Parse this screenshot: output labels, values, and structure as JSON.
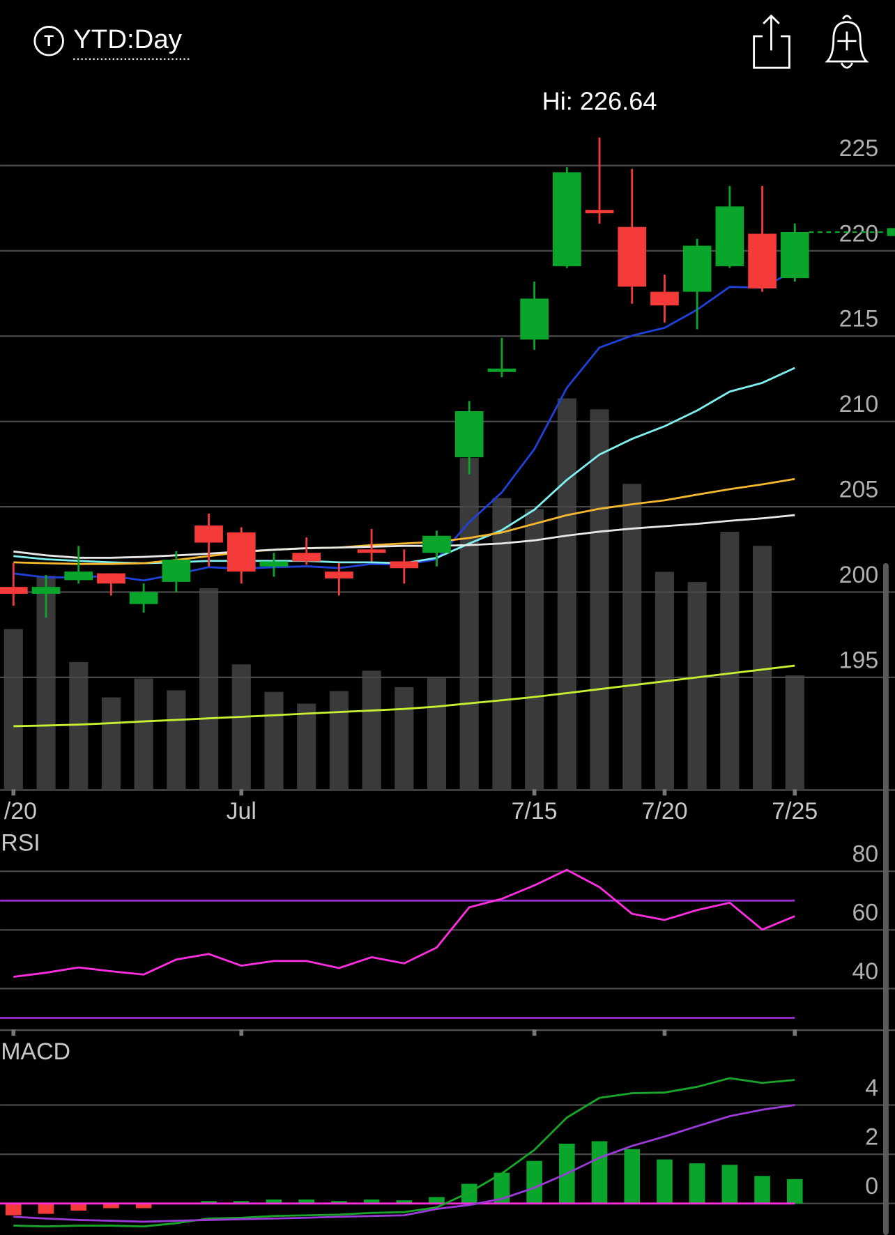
{
  "header": {
    "symbol_icon": "T",
    "title": "YTD:Day"
  },
  "chart_data": [
    {
      "type": "candlestick",
      "annotation": "Hi: 226.64",
      "categories": [
        "/20",
        null,
        null,
        null,
        null,
        null,
        null,
        "Jul",
        null,
        null,
        null,
        null,
        null,
        null,
        null,
        null,
        "7/15",
        null,
        null,
        null,
        "7/20",
        null,
        null,
        null,
        "7/25"
      ],
      "open": [
        200.3,
        199.9,
        200.7,
        201.1,
        199.3,
        200.6,
        203.9,
        203.5,
        201.5,
        202.3,
        201.2,
        202.5,
        201.8,
        202.3,
        207.9,
        212.9,
        214.8,
        219.1,
        222.4,
        221.4,
        217.6,
        217.6,
        219.1,
        221.0,
        218.4
      ],
      "high": [
        201.7,
        201.0,
        202.7,
        201.1,
        200.5,
        202.4,
        204.6,
        203.8,
        202.3,
        203.2,
        201.7,
        203.7,
        202.5,
        203.6,
        211.2,
        214.9,
        218.2,
        224.9,
        226.64,
        224.8,
        218.6,
        220.7,
        223.8,
        223.8,
        221.6
      ],
      "low": [
        199.2,
        198.5,
        200.5,
        199.8,
        198.8,
        200.0,
        201.5,
        200.5,
        200.9,
        201.6,
        199.8,
        201.8,
        200.5,
        201.5,
        206.9,
        212.6,
        214.2,
        219.0,
        221.6,
        216.9,
        215.8,
        215.4,
        219.0,
        217.6,
        218.2
      ],
      "close": [
        199.9,
        200.3,
        201.2,
        200.5,
        200.0,
        201.9,
        202.9,
        201.2,
        201.8,
        201.8,
        200.8,
        202.3,
        201.4,
        203.3,
        210.6,
        213.1,
        217.2,
        224.6,
        222.2,
        217.9,
        216.8,
        220.3,
        222.6,
        217.8,
        221.1
      ],
      "volume": [
        20.5,
        27.3,
        16.3,
        11.8,
        14.2,
        12.7,
        25.7,
        16.0,
        12.5,
        11.0,
        12.6,
        15.2,
        13.1,
        14.3,
        42.3,
        37.2,
        35.8,
        49.9,
        48.5,
        39.0,
        27.8,
        26.5,
        32.9,
        31.1,
        14.6
      ],
      "volume_ylim": [
        0,
        85
      ],
      "volume_color": "#3a3a3a",
      "up_color": "#0aa62b",
      "down_color": "#f53a3a",
      "last_price_line": true,
      "series": [
        {
          "color": "#2140d8",
          "values": [
            201.09,
            200.86,
            200.86,
            200.95,
            200.68,
            201.05,
            201.46,
            201.37,
            201.46,
            201.51,
            201.41,
            201.65,
            201.6,
            201.92,
            204.09,
            205.84,
            208.38,
            211.98,
            214.33,
            215.03,
            215.49,
            216.55,
            217.89,
            217.84,
            218.86
          ]
        },
        {
          "color": "#80f0f0",
          "values": [
            202.11,
            201.92,
            201.83,
            201.74,
            201.69,
            201.74,
            201.83,
            201.83,
            201.83,
            201.83,
            201.74,
            201.74,
            201.69,
            202.01,
            202.85,
            203.63,
            204.83,
            206.58,
            208.06,
            208.98,
            209.72,
            210.64,
            211.75,
            212.26,
            213.14
          ]
        },
        {
          "color": "#f5b82e",
          "values": [
            201.74,
            201.69,
            201.65,
            201.65,
            201.69,
            201.88,
            202.11,
            202.34,
            202.48,
            202.57,
            202.61,
            202.75,
            202.85,
            202.94,
            203.17,
            203.49,
            204.0,
            204.51,
            204.88,
            205.15,
            205.38,
            205.71,
            206.03,
            206.31,
            206.63
          ]
        },
        {
          "color": "#e8e8e8",
          "values": [
            202.38,
            202.15,
            202.01,
            202.01,
            202.06,
            202.15,
            202.25,
            202.38,
            202.48,
            202.57,
            202.61,
            202.66,
            202.71,
            202.71,
            202.75,
            202.85,
            203.03,
            203.31,
            203.54,
            203.72,
            203.86,
            204.0,
            204.18,
            204.32,
            204.51
          ]
        },
        {
          "color": "#c8f030",
          "values": [
            192.14,
            192.18,
            192.23,
            192.32,
            192.42,
            192.51,
            192.6,
            192.69,
            192.78,
            192.88,
            192.97,
            193.06,
            193.15,
            193.29,
            193.48,
            193.66,
            193.85,
            194.08,
            194.31,
            194.54,
            194.77,
            195.0,
            195.23,
            195.46,
            195.69
          ]
        }
      ],
      "ylim": [
        188.4,
        227.5
      ],
      "yticks": [
        195,
        200,
        205,
        210,
        215,
        220,
        225
      ],
      "grid": true
    },
    {
      "type": "line",
      "title": "RSI",
      "series": [
        {
          "color": "#ff2ee0",
          "values": [
            44.0,
            45.4,
            47.2,
            45.9,
            44.8,
            49.9,
            51.8,
            47.8,
            49.4,
            49.4,
            47.0,
            50.7,
            48.6,
            54.0,
            67.7,
            70.6,
            75.2,
            80.5,
            74.6,
            65.5,
            63.4,
            66.8,
            69.3,
            60.1,
            64.7
          ]
        }
      ],
      "reference_lines": [
        {
          "value": 70,
          "color": "#9a2fd0"
        },
        {
          "value": 30,
          "color": "#9a2fd0"
        }
      ],
      "ylim": [
        25.8,
        90
      ],
      "yticks": [
        40,
        60,
        80
      ],
      "grid": true
    },
    {
      "type": "macd",
      "title": "MACD",
      "series": [
        {
          "color": "#18a52a",
          "values": [
            -0.9,
            -0.93,
            -0.9,
            -0.9,
            -0.93,
            -0.8,
            -0.61,
            -0.58,
            -0.51,
            -0.48,
            -0.45,
            -0.38,
            -0.35,
            -0.16,
            0.45,
            1.22,
            2.18,
            3.49,
            4.29,
            4.48,
            4.51,
            4.74,
            5.09,
            4.9,
            5.02
          ]
        },
        {
          "color": "#9b3ad6",
          "values": [
            -0.54,
            -0.61,
            -0.67,
            -0.7,
            -0.74,
            -0.7,
            -0.67,
            -0.64,
            -0.61,
            -0.58,
            -0.54,
            -0.51,
            -0.48,
            -0.22,
            -0.06,
            0.19,
            0.64,
            1.22,
            1.86,
            2.34,
            2.72,
            3.14,
            3.55,
            3.81,
            4.0
          ]
        }
      ],
      "histogram": [
        -0.48,
        -0.42,
        -0.29,
        -0.19,
        -0.19,
        0.0,
        0.1,
        0.1,
        0.16,
        0.16,
        0.1,
        0.16,
        0.13,
        0.26,
        0.8,
        1.25,
        1.73,
        2.43,
        2.53,
        2.21,
        1.79,
        1.63,
        1.57,
        1.12,
        0.99
      ],
      "up_color": "#0aa62b",
      "down_color": "#f53a3a",
      "zero_line_color": "#ff2ee0",
      "ylim": [
        -1.28,
        5.6
      ],
      "yticks": [
        0,
        2,
        4
      ],
      "grid": true
    }
  ]
}
